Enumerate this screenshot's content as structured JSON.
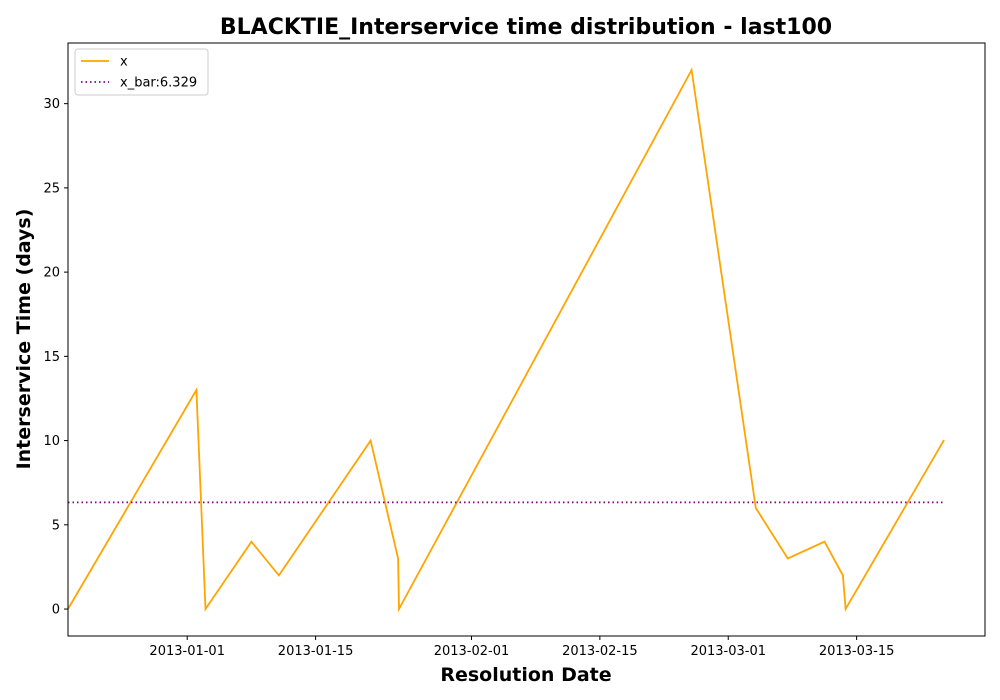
{
  "chart_data": {
    "type": "line",
    "title": "BLACKTIE_Interservice time distribution - last100",
    "xlabel": "Resolution Date",
    "ylabel": "Interservice Time (days)",
    "x_range": [
      "2012-12-19",
      "2013-03-29"
    ],
    "ylim": [
      -1.6,
      33.6
    ],
    "x_ticks": [
      "2013-01-01",
      "2013-01-15",
      "2013-02-01",
      "2013-02-15",
      "2013-03-01",
      "2013-03-15"
    ],
    "y_ticks": [
      0,
      5,
      10,
      15,
      20,
      25,
      30
    ],
    "grid": false,
    "legend_position": "top-left",
    "series": [
      {
        "name": "x",
        "color": "#ffa500",
        "style": "solid",
        "points": [
          {
            "x": "2012-12-19",
            "y": 0
          },
          {
            "x": "2013-01-02",
            "y": 13
          },
          {
            "x": "2013-01-03",
            "y": 0
          },
          {
            "x": "2013-01-08",
            "y": 4
          },
          {
            "x": "2013-01-11",
            "y": 2
          },
          {
            "x": "2013-01-21",
            "y": 10
          },
          {
            "x": "2013-01-24",
            "y": 3
          },
          {
            "x": "2013-01-24.1",
            "y": 0
          },
          {
            "x": "2013-02-25",
            "y": 32
          },
          {
            "x": "2013-03-04",
            "y": 6
          },
          {
            "x": "2013-03-07.5",
            "y": 3
          },
          {
            "x": "2013-03-11.5",
            "y": 4
          },
          {
            "x": "2013-03-13.5",
            "y": 2
          },
          {
            "x": "2013-03-13.8",
            "y": 0
          },
          {
            "x": "2013-03-24.5",
            "y": 10
          }
        ]
      },
      {
        "name": "x_bar:6.329",
        "color": "#800080",
        "style": "dotted",
        "points": [
          {
            "x": "2012-12-19",
            "y": 6.329
          },
          {
            "x": "2013-03-24.5",
            "y": 6.329
          }
        ]
      }
    ]
  }
}
